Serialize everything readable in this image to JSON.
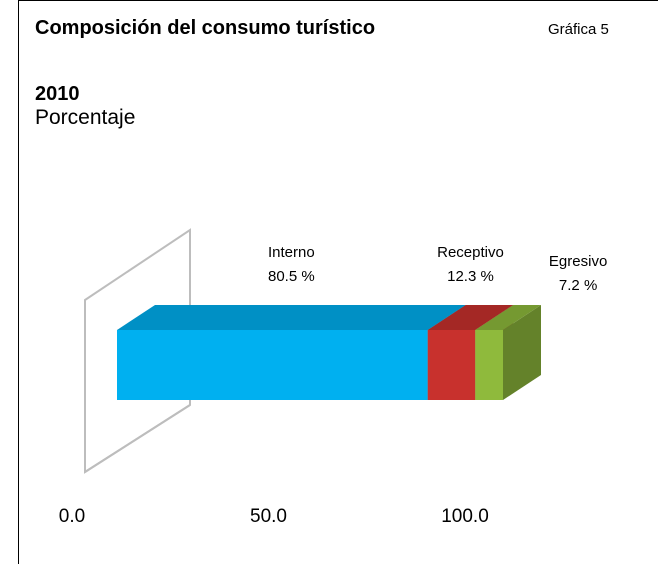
{
  "chart_data": {
    "type": "stacked-bar-3d",
    "title": "Composición del consumo turístico",
    "date": "2010",
    "subtitle": "Porcentaje",
    "annotation": "Gráfica 5",
    "series": [
      {
        "name": "Interno",
        "color": "#00b0f0",
        "values": [
          80.5
        ],
        "value_labels": [
          "80.5 %"
        ]
      },
      {
        "name": "Receptivo",
        "color": "#c8312d",
        "values": [
          12.3
        ],
        "value_labels": [
          "12.3 %"
        ]
      },
      {
        "name": "Egresivo",
        "color": "#8fba3c",
        "values": [
          7.2
        ],
        "value_labels": [
          "7.2 %"
        ]
      }
    ],
    "xlim": [
      0,
      100
    ],
    "xticks": [
      {
        "value": 0,
        "label": "0.0"
      },
      {
        "value": 50,
        "label": "50.0"
      },
      {
        "value": 100,
        "label": "100.0"
      }
    ]
  }
}
